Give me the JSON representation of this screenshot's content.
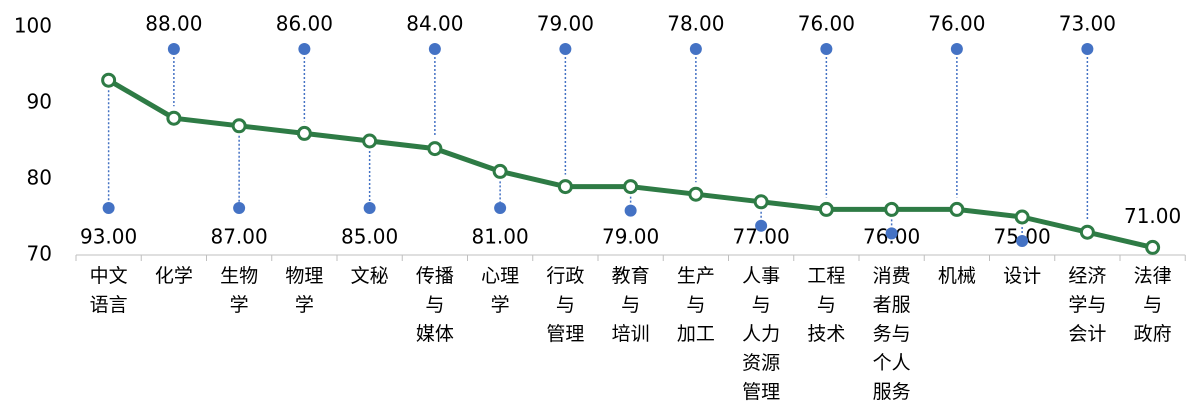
{
  "chart_data": {
    "type": "line",
    "categories": [
      "中文\n语言",
      "化学",
      "生物\n学",
      "物理\n学",
      "文秘",
      "传播\n与\n媒体",
      "心理\n学",
      "行政\n与\n管理",
      "教育\n与\n培训",
      "生产\n与\n加工",
      "人事\n与\n人力\n资源\n管理",
      "工程\n与\n技术",
      "消费\n者服\n务与\n个人\n服务",
      "机械",
      "设计",
      "经济\n学与\n会计",
      "法律\n与\n政府"
    ],
    "values": [
      93,
      88,
      87,
      86,
      85,
      84,
      81,
      79,
      79,
      78,
      77,
      76,
      76,
      76,
      75,
      73,
      71
    ],
    "value_labels": [
      "93.00",
      "88.00",
      "87.00",
      "86.00",
      "85.00",
      "84.00",
      "81.00",
      "79.00",
      "79.00",
      "78.00",
      "77.00",
      "76.00",
      "76.00",
      "76.00",
      "75.00",
      "73.00",
      "71.00"
    ],
    "color": "#2e7b45",
    "callout_color": "#4472c4",
    "ylim": [
      70,
      100
    ],
    "yticks": [
      70,
      80,
      90,
      100
    ],
    "grid": false
  }
}
